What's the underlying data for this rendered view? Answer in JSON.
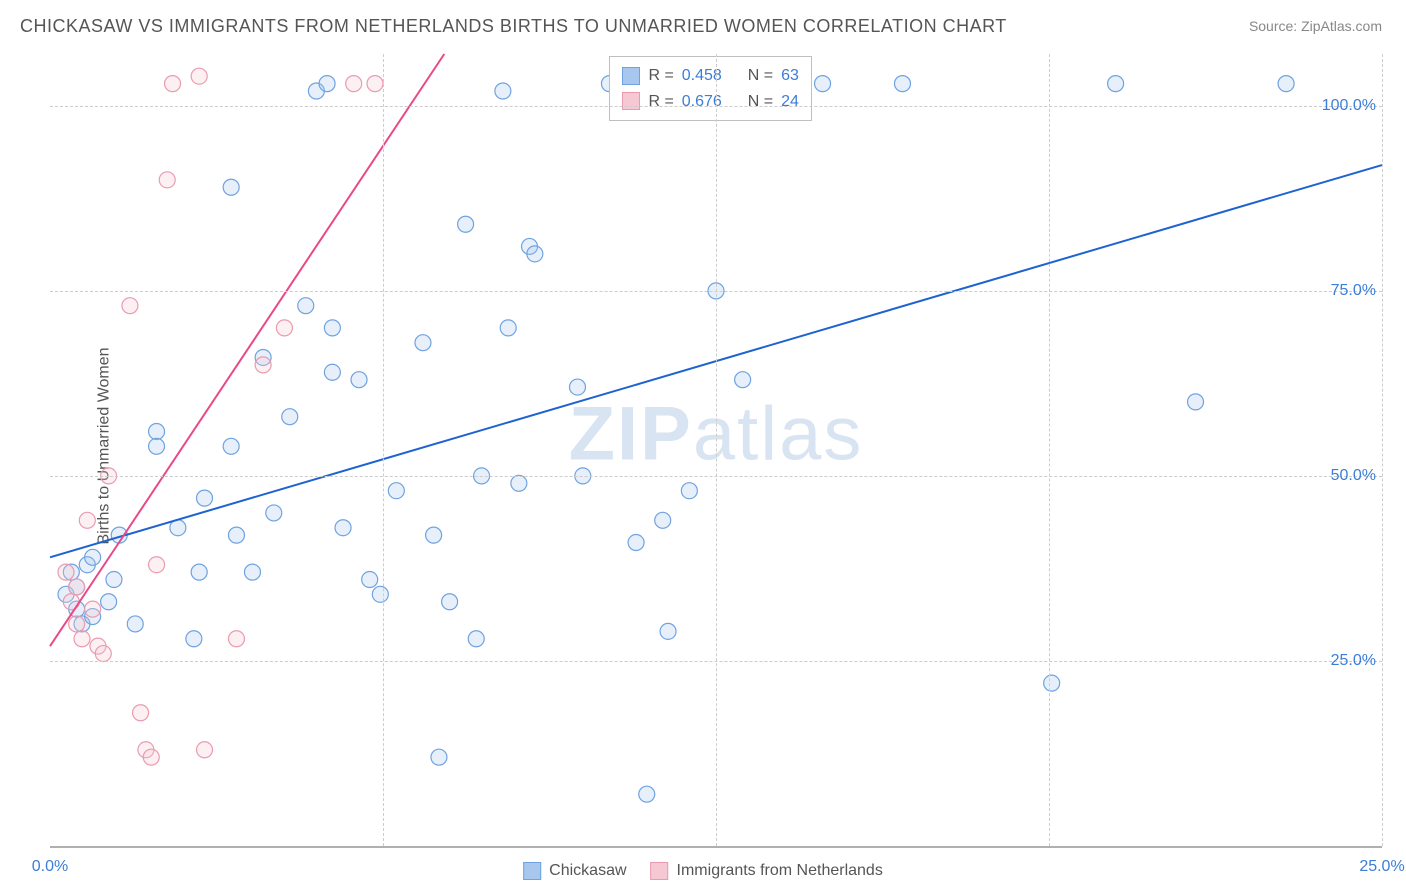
{
  "title": "CHICKASAW VS IMMIGRANTS FROM NETHERLANDS BIRTHS TO UNMARRIED WOMEN CORRELATION CHART",
  "source": "Source: ZipAtlas.com",
  "ylabel": "Births to Unmarried Women",
  "watermark_bold": "ZIP",
  "watermark_light": "atlas",
  "chart": {
    "type": "scatter",
    "background_color": "#ffffff",
    "grid_color": "#cccccc",
    "axis_color": "#b0b0b0",
    "tick_color": "#3b7dd8",
    "tick_fontsize": 16,
    "label_fontsize": 16,
    "title_fontsize": 18,
    "title_color": "#555555",
    "label_color": "#555555",
    "xlim": [
      0,
      25
    ],
    "ylim": [
      0,
      107
    ],
    "xtick_values": [
      0,
      25
    ],
    "xtick_labels": [
      "0.0%",
      "25.0%"
    ],
    "ytick_values": [
      25,
      50,
      75,
      100
    ],
    "ytick_labels": [
      "25.0%",
      "50.0%",
      "75.0%",
      "100.0%"
    ],
    "vgrid_values": [
      6.25,
      12.5,
      18.75,
      25
    ],
    "marker_radius": 8,
    "marker_stroke_width": 1.2,
    "marker_fill_opacity": 0.28,
    "trendline_width": 2,
    "series": [
      {
        "name": "Chickasaw",
        "color_fill": "#a7c7ee",
        "color_stroke": "#6fa3e0",
        "trendline_color": "#1e63d0",
        "R": 0.458,
        "N": 63,
        "trendline": {
          "x1": 0,
          "y1": 39,
          "x2": 25,
          "y2": 92
        },
        "points": [
          [
            0.3,
            34
          ],
          [
            0.4,
            37
          ],
          [
            0.5,
            35
          ],
          [
            0.5,
            32
          ],
          [
            0.6,
            30
          ],
          [
            0.7,
            38
          ],
          [
            0.8,
            39
          ],
          [
            0.8,
            31
          ],
          [
            1.1,
            33
          ],
          [
            1.2,
            36
          ],
          [
            1.3,
            42
          ],
          [
            1.6,
            30
          ],
          [
            2.0,
            56
          ],
          [
            2.0,
            54
          ],
          [
            2.4,
            43
          ],
          [
            2.7,
            28
          ],
          [
            2.8,
            37
          ],
          [
            2.9,
            47
          ],
          [
            3.4,
            89
          ],
          [
            3.4,
            54
          ],
          [
            3.5,
            42
          ],
          [
            3.8,
            37
          ],
          [
            4.0,
            66
          ],
          [
            4.2,
            45
          ],
          [
            4.5,
            58
          ],
          [
            4.8,
            73
          ],
          [
            5.0,
            102
          ],
          [
            5.2,
            103
          ],
          [
            5.3,
            70
          ],
          [
            5.3,
            64
          ],
          [
            5.5,
            43
          ],
          [
            5.8,
            63
          ],
          [
            6.0,
            36
          ],
          [
            6.2,
            34
          ],
          [
            6.5,
            48
          ],
          [
            7.0,
            68
          ],
          [
            7.2,
            42
          ],
          [
            7.3,
            12
          ],
          [
            7.5,
            33
          ],
          [
            7.8,
            84
          ],
          [
            8.0,
            28
          ],
          [
            8.1,
            50
          ],
          [
            8.5,
            102
          ],
          [
            8.6,
            70
          ],
          [
            8.8,
            49
          ],
          [
            9.0,
            81
          ],
          [
            9.1,
            80
          ],
          [
            9.9,
            62
          ],
          [
            10.0,
            50
          ],
          [
            10.5,
            103
          ],
          [
            11.0,
            41
          ],
          [
            11.2,
            7
          ],
          [
            11.5,
            44
          ],
          [
            11.6,
            29
          ],
          [
            12.0,
            48
          ],
          [
            12.5,
            75
          ],
          [
            13.0,
            63
          ],
          [
            14.5,
            103
          ],
          [
            16.0,
            103
          ],
          [
            18.8,
            22
          ],
          [
            20.0,
            103
          ],
          [
            21.5,
            60
          ],
          [
            23.2,
            103
          ]
        ]
      },
      {
        "name": "Immigrants from Netherlands",
        "color_fill": "#f5c8d3",
        "color_stroke": "#eb9ab0",
        "trendline_color": "#e74a87",
        "R": 0.676,
        "N": 24,
        "trendline": {
          "x1": 0,
          "y1": 27,
          "x2": 7.4,
          "y2": 107
        },
        "points": [
          [
            0.3,
            37
          ],
          [
            0.4,
            33
          ],
          [
            0.5,
            30
          ],
          [
            0.5,
            35
          ],
          [
            0.6,
            28
          ],
          [
            0.7,
            44
          ],
          [
            0.8,
            32
          ],
          [
            0.9,
            27
          ],
          [
            1.0,
            26
          ],
          [
            1.1,
            50
          ],
          [
            1.5,
            73
          ],
          [
            1.7,
            18
          ],
          [
            1.8,
            13
          ],
          [
            1.9,
            12
          ],
          [
            2.0,
            38
          ],
          [
            2.2,
            90
          ],
          [
            2.3,
            103
          ],
          [
            2.8,
            104
          ],
          [
            2.9,
            13
          ],
          [
            3.5,
            28
          ],
          [
            4.0,
            65
          ],
          [
            4.4,
            70
          ],
          [
            5.7,
            103
          ],
          [
            6.1,
            103
          ]
        ]
      }
    ]
  },
  "legend_top": {
    "rows": [
      {
        "swatch_fill": "#a7c7ee",
        "swatch_stroke": "#6fa3e0",
        "R_label": "R =",
        "R": "0.458",
        "N_label": "N =",
        "N": "63"
      },
      {
        "swatch_fill": "#f5c8d3",
        "swatch_stroke": "#eb9ab0",
        "R_label": "R =",
        "R": "0.676",
        "N_label": "N =",
        "N": "24"
      }
    ]
  },
  "legend_bottom": [
    {
      "swatch_fill": "#a7c7ee",
      "swatch_stroke": "#6fa3e0",
      "label": "Chickasaw"
    },
    {
      "swatch_fill": "#f5c8d3",
      "swatch_stroke": "#eb9ab0",
      "label": "Immigrants from Netherlands"
    }
  ]
}
